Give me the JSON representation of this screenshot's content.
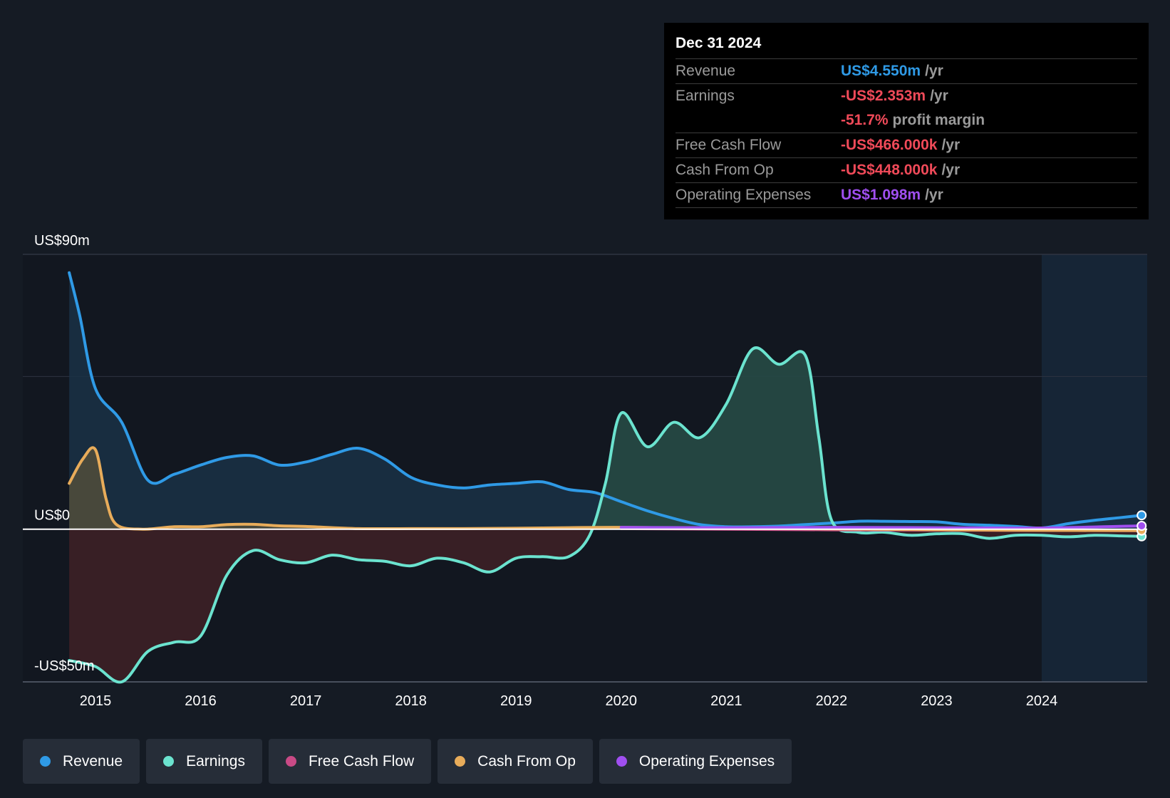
{
  "tooltip": {
    "date": "Dec 31 2024",
    "rows": [
      {
        "label": "Revenue",
        "value": "US$4.550m",
        "unit": "/yr",
        "color": "#2f9ae6"
      },
      {
        "label": "Earnings",
        "value": "-US$2.353m",
        "unit": "/yr",
        "color": "#f04a59"
      },
      {
        "label": "",
        "value": "-51.7%",
        "unit": "profit margin",
        "color": "#f04a59"
      },
      {
        "label": "Free Cash Flow",
        "value": "-US$466.000k",
        "unit": "/yr",
        "color": "#f04a59"
      },
      {
        "label": "Cash From Op",
        "value": "-US$448.000k",
        "unit": "/yr",
        "color": "#f04a59"
      },
      {
        "label": "Operating Expenses",
        "value": "US$1.098m",
        "unit": "/yr",
        "color": "#a04ff0"
      }
    ]
  },
  "legend": [
    {
      "label": "Revenue",
      "color": "#2f9ae6"
    },
    {
      "label": "Earnings",
      "color": "#6be3cf"
    },
    {
      "label": "Free Cash Flow",
      "color": "#c94a86"
    },
    {
      "label": "Cash From Op",
      "color": "#e8ac5a"
    },
    {
      "label": "Operating Expenses",
      "color": "#a04ff0"
    }
  ],
  "chart_data": {
    "type": "area",
    "title": "",
    "xlabel": "",
    "ylabel": "",
    "ylim": [
      -50,
      90
    ],
    "y_axis_labels": [
      {
        "value": 90,
        "label": "US$90m"
      },
      {
        "value": 0,
        "label": "US$0"
      },
      {
        "value": -50,
        "label": "-US$50m"
      }
    ],
    "gridlines": [
      90,
      50,
      0,
      -50
    ],
    "xlim": [
      2014.7,
      2024.95
    ],
    "x_ticks": [
      {
        "value": 2015,
        "label": "2015"
      },
      {
        "value": 2016,
        "label": "2016"
      },
      {
        "value": 2017,
        "label": "2017"
      },
      {
        "value": 2018,
        "label": "2018"
      },
      {
        "value": 2019,
        "label": "2019"
      },
      {
        "value": 2020,
        "label": "2020"
      },
      {
        "value": 2021,
        "label": "2021"
      },
      {
        "value": 2022,
        "label": "2022"
      },
      {
        "value": 2023,
        "label": "2023"
      },
      {
        "value": 2024,
        "label": "2024"
      }
    ],
    "highlight_start": 2024.0,
    "series": [
      {
        "name": "Revenue",
        "color": "#2f9ae6",
        "fill": true,
        "fill_color": "#1a3146",
        "x": [
          2014.75,
          2014.85,
          2015.0,
          2015.25,
          2015.5,
          2015.75,
          2016.0,
          2016.25,
          2016.5,
          2016.75,
          2017.0,
          2017.25,
          2017.5,
          2017.75,
          2018.0,
          2018.25,
          2018.5,
          2018.75,
          2019.0,
          2019.25,
          2019.5,
          2019.75,
          2020.0,
          2020.25,
          2020.5,
          2020.75,
          2021.0,
          2021.25,
          2021.5,
          2021.75,
          2022.0,
          2022.25,
          2022.5,
          2022.75,
          2023.0,
          2023.25,
          2023.5,
          2023.75,
          2024.0,
          2024.25,
          2024.5,
          2024.75,
          2024.95
        ],
        "values": [
          84,
          70,
          46,
          35,
          16,
          18,
          21,
          23.5,
          24,
          21,
          22,
          24.5,
          26.5,
          23,
          17,
          14.5,
          13.5,
          14.5,
          15,
          15.5,
          13,
          12,
          9,
          6,
          3.5,
          1.5,
          0.8,
          0.8,
          1.0,
          1.5,
          2.0,
          2.6,
          2.6,
          2.5,
          2.4,
          1.6,
          1.3,
          0.9,
          0.4,
          1.8,
          2.9,
          3.8,
          4.55
        ]
      },
      {
        "name": "Earnings",
        "color": "#6be3cf",
        "fill": true,
        "fill_color_pos": "#264843",
        "fill_color_neg": "#3b2026",
        "x": [
          2014.75,
          2015.0,
          2015.25,
          2015.5,
          2015.75,
          2016.0,
          2016.25,
          2016.5,
          2016.75,
          2017.0,
          2017.25,
          2017.5,
          2017.75,
          2018.0,
          2018.25,
          2018.5,
          2018.75,
          2019.0,
          2019.25,
          2019.5,
          2019.7,
          2019.85,
          2020.0,
          2020.25,
          2020.5,
          2020.75,
          2021.0,
          2021.25,
          2021.5,
          2021.75,
          2021.88,
          2022.0,
          2022.25,
          2022.5,
          2022.75,
          2023.0,
          2023.25,
          2023.5,
          2023.75,
          2024.0,
          2024.25,
          2024.5,
          2024.75,
          2024.95
        ],
        "values": [
          -43,
          -45,
          -50,
          -40,
          -37,
          -35,
          -15,
          -7,
          -10,
          -11,
          -8.5,
          -10,
          -10.5,
          -12,
          -9.5,
          -11,
          -14,
          -9.5,
          -9,
          -9,
          -2,
          15,
          38,
          27,
          35,
          30,
          41,
          59,
          54,
          57,
          30,
          3,
          -1,
          -1,
          -2,
          -1.5,
          -1.5,
          -3,
          -2,
          -2,
          -2.5,
          -2,
          -2.2,
          -2.35
        ]
      },
      {
        "name": "Free Cash Flow",
        "color": "#c94a86",
        "fill": false,
        "x": [
          2020.0,
          2021.0,
          2022.0,
          2023.0,
          2024.0,
          2024.95
        ],
        "values": [
          0.2,
          0.0,
          -0.2,
          -0.3,
          -0.4,
          -0.466
        ]
      },
      {
        "name": "Cash From Op",
        "color": "#e8ac5a",
        "fill": true,
        "fill_color": "#514d3b",
        "x": [
          2014.75,
          2014.88,
          2015.0,
          2015.1,
          2015.2,
          2015.45,
          2015.75,
          2016.0,
          2016.25,
          2016.5,
          2016.75,
          2017.0,
          2017.5,
          2018.0,
          2018.5,
          2019.0,
          2019.5,
          2020.0,
          2021.0,
          2022.0,
          2023.0,
          2024.0,
          2024.95
        ],
        "values": [
          15,
          23,
          26,
          10,
          1.5,
          0,
          0.8,
          0.8,
          1.5,
          1.6,
          1.1,
          0.9,
          0.2,
          0.2,
          0.2,
          0.3,
          0.5,
          0.6,
          0.3,
          0.1,
          -0.2,
          -0.4,
          -0.448
        ]
      },
      {
        "name": "Operating Expenses",
        "color": "#a04ff0",
        "fill": false,
        "x": [
          2020.0,
          2021.0,
          2022.0,
          2023.0,
          2024.0,
          2024.95
        ],
        "values": [
          0.6,
          0.5,
          0.6,
          0.5,
          0.4,
          1.098
        ]
      }
    ]
  }
}
